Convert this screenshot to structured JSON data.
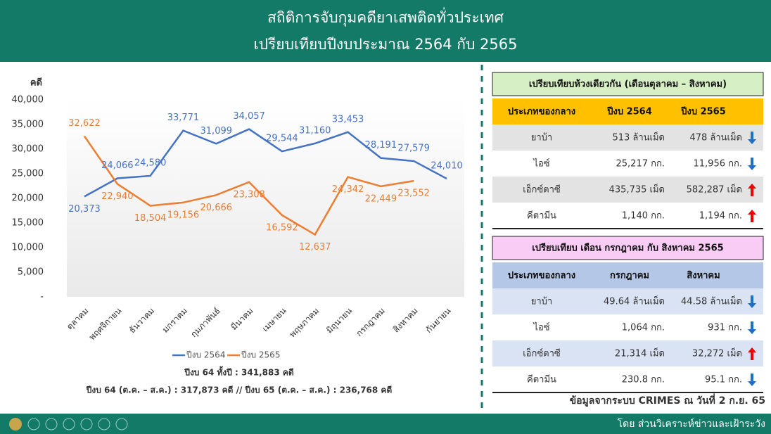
{
  "header": {
    "title": "สถิติการจับกุมคดียาเสพติดทั่วประเทศ",
    "subtitle": "เปรียบเทียบปีงบประมาณ 2564 กับ 2565"
  },
  "chart_data": {
    "type": "line",
    "ylabel": "คดี",
    "categories": [
      "ตุลาคม",
      "พฤศจิกายน",
      "ธันวาคม",
      "มกราคม",
      "กุมภาพันธ์",
      "มีนาคม",
      "เมษายน",
      "พฤษภาคม",
      "มิถุนายน",
      "กรกฎาคม",
      "สิงหาคม",
      "กันยายน"
    ],
    "series": [
      {
        "name": "ปีงบ 2564",
        "color": "#4472c4",
        "values": [
          20373,
          24066,
          24580,
          33771,
          31099,
          34057,
          29544,
          31160,
          33453,
          28191,
          27579,
          24010
        ],
        "value_labels": [
          "20,373",
          "24,066",
          "24,580",
          "33,771",
          "31,099",
          "34,057",
          "29,544",
          "31,160",
          "33,453",
          "28,191",
          "27,579",
          "24,010"
        ]
      },
      {
        "name": "ปีงบ 2565",
        "color": "#ed7d31",
        "values": [
          32622,
          22940,
          18504,
          19156,
          20666,
          23308,
          16592,
          12637,
          24342,
          22449,
          23552,
          null
        ],
        "value_labels": [
          "32,622",
          "22,940",
          "18,504",
          "19,156",
          "20,666",
          "23,308",
          "16,592",
          "12,637",
          "24,342",
          "22,449",
          "23,552",
          null
        ]
      }
    ],
    "ylim": [
      0,
      40000
    ],
    "yticks": [
      {
        "value": 0,
        "label": "-"
      },
      {
        "value": 5000,
        "label": "5,000"
      },
      {
        "value": 10000,
        "label": "10,000"
      },
      {
        "value": 15000,
        "label": "15,000"
      },
      {
        "value": 20000,
        "label": "20,000"
      },
      {
        "value": 25000,
        "label": "25,000"
      },
      {
        "value": 30000,
        "label": "30,000"
      },
      {
        "value": 35000,
        "label": "35,000"
      },
      {
        "value": 40000,
        "label": "40,000"
      }
    ],
    "notes": [
      "ปีงบ 64 ทั้งปี : 341,883 คดี",
      "ปีงบ 64 (ต.ค. – ส.ค.) : 317,873 คดี // ปีงบ 65 (ต.ค. – ส.ค.) : 236,768 คดี"
    ]
  },
  "table1": {
    "title": "เปรียบเทียบห้วงเดียวกัน (เดือนตุลาคม – สิงหาคม)",
    "headers": [
      "ประเภทของกลาง",
      "ปีงบ 2564",
      "ปีงบ 2565"
    ],
    "rows": [
      {
        "cells": [
          "ยาบ้า",
          "513 ล้านเม็ด",
          "478 ล้านเม็ด"
        ],
        "trend": "down"
      },
      {
        "cells": [
          "ไอซ์",
          "25,217 กก.",
          "11,956 กก."
        ],
        "trend": "down"
      },
      {
        "cells": [
          "เอ็กซ์ตาซี",
          "435,735 เม็ด",
          "582,287 เม็ด"
        ],
        "trend": "up"
      },
      {
        "cells": [
          "คีตามีน",
          "1,140 กก.",
          "1,194 กก."
        ],
        "trend": "up"
      }
    ]
  },
  "table2": {
    "title": "เปรียบเทียบ เดือน กรกฎาคม กับ สิงหาคม 2565",
    "headers": [
      "ประเภทของกลาง",
      "กรกฎาคม",
      "สิงหาคม"
    ],
    "rows": [
      {
        "cells": [
          "ยาบ้า",
          "49.64 ล้านเม็ด",
          "44.58 ล้านเม็ด"
        ],
        "trend": "down"
      },
      {
        "cells": [
          "ไอซ์",
          "1,064 กก.",
          "931 กก."
        ],
        "trend": "down"
      },
      {
        "cells": [
          "เอ็กซ์ตาซี",
          "21,314 เม็ด",
          "32,272 เม็ด"
        ],
        "trend": "up"
      },
      {
        "cells": [
          "คีตามีน",
          "230.8 กก.",
          "95.1 กก."
        ],
        "trend": "down"
      }
    ]
  },
  "source": "ข้อมูลจากระบบ CRIMES ณ วันที่ 2 ก.ย. 65",
  "footer": "โดย ส่วนวิเคราะห์ข่าวและเฝ้าระวัง"
}
